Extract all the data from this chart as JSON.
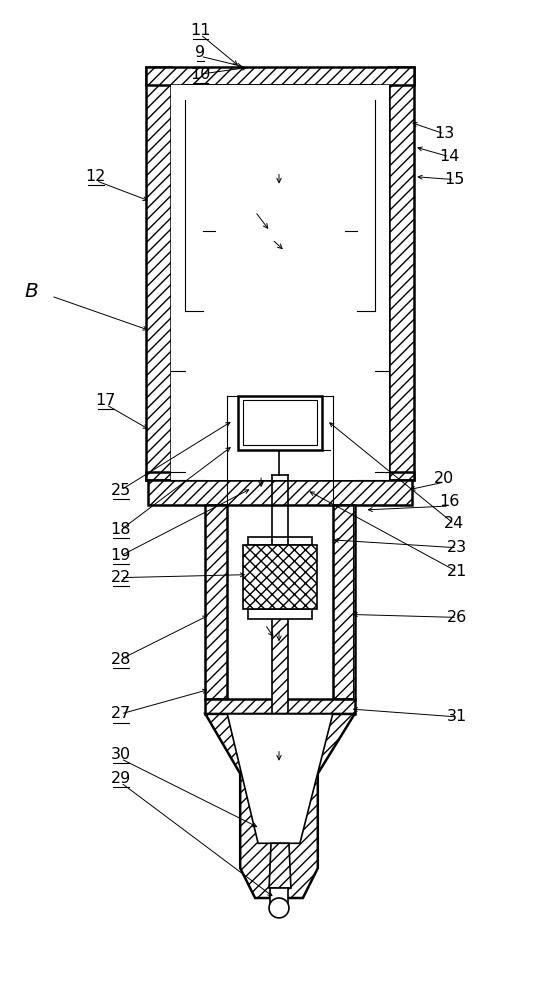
{
  "bg_color": "#ffffff",
  "fig_width": 5.58,
  "fig_height": 10.0
}
